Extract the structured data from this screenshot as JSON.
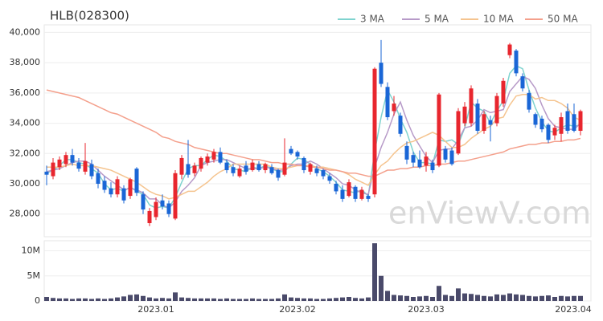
{
  "watermark": "enViewV.com",
  "chart_data": [
    {
      "type": "candlestick",
      "title": "HLB(028300)",
      "open": [
        30800,
        30500,
        31100,
        31300,
        31900,
        31400,
        30800,
        31300,
        30700,
        30200,
        29700,
        29300,
        29700,
        29200,
        31000,
        29300,
        27400,
        27800,
        28900,
        28700,
        27700,
        30600,
        31300,
        30700,
        31000,
        31400,
        31600,
        32100,
        31400,
        31100,
        30500,
        31200,
        30900,
        31300,
        30900,
        31100,
        30900,
        30600,
        32300,
        32100,
        31700,
        30800,
        31000,
        30900,
        30500,
        30000,
        29600,
        29200,
        29800,
        29000,
        29200,
        29300,
        38000,
        36400,
        34800,
        34500,
        32500,
        31900,
        31600,
        31200,
        31400,
        31200,
        32300,
        32200,
        32000,
        34000,
        34000,
        35300,
        33500,
        34200,
        34000,
        35300,
        38500,
        38800,
        37100,
        36000,
        34600,
        34300,
        33900,
        33200,
        33300,
        34800,
        34600,
        33500
      ],
      "high": [
        31200,
        31700,
        31800,
        32100,
        32300,
        31700,
        32700,
        31600,
        31000,
        30500,
        30100,
        30500,
        29900,
        30400,
        31100,
        29500,
        28400,
        29100,
        29300,
        28900,
        30900,
        31900,
        32900,
        31400,
        31800,
        32000,
        32300,
        32400,
        31600,
        31300,
        31200,
        31500,
        31600,
        31500,
        31400,
        31300,
        31000,
        33000,
        32500,
        32200,
        31800,
        31400,
        31200,
        31000,
        30700,
        30200,
        29900,
        30300,
        29900,
        29800,
        29300,
        37700,
        39500,
        36700,
        35800,
        34700,
        32800,
        32100,
        32200,
        32100,
        31600,
        36000,
        32500,
        32400,
        35000,
        35400,
        36500,
        35600,
        34800,
        34500,
        36000,
        37000,
        39300,
        38900,
        37300,
        36200,
        34700,
        34500,
        34000,
        33900,
        34700,
        35300,
        35300,
        34900
      ],
      "low": [
        29900,
        30300,
        30900,
        31100,
        31200,
        30800,
        30600,
        30300,
        29700,
        29400,
        29100,
        29100,
        28700,
        29000,
        29200,
        28000,
        27200,
        27600,
        28300,
        27800,
        27600,
        30300,
        30400,
        30500,
        30800,
        31200,
        31400,
        31300,
        30700,
        30500,
        30400,
        30600,
        30800,
        30800,
        30700,
        30600,
        30200,
        30500,
        31900,
        31600,
        30700,
        30600,
        30500,
        30300,
        30000,
        29300,
        28800,
        29100,
        28800,
        28900,
        28800,
        29100,
        36400,
        34200,
        34500,
        33100,
        31300,
        31100,
        31000,
        30800,
        30700,
        31100,
        31400,
        31200,
        31900,
        33800,
        33800,
        33300,
        33300,
        32800,
        33800,
        35100,
        38300,
        37100,
        36100,
        34700,
        33700,
        33400,
        32700,
        32900,
        32800,
        33300,
        33400,
        33200
      ],
      "close": [
        30600,
        31400,
        31600,
        31900,
        31400,
        31000,
        31500,
        30500,
        30000,
        29600,
        29300,
        30300,
        28900,
        30300,
        29400,
        28300,
        28200,
        28800,
        28500,
        28000,
        30700,
        31700,
        30600,
        31200,
        31700,
        31800,
        32100,
        31400,
        30900,
        30700,
        31000,
        30800,
        31400,
        30900,
        31300,
        30700,
        30400,
        31400,
        32000,
        31800,
        30900,
        31300,
        30700,
        30500,
        30200,
        29500,
        29000,
        30100,
        29000,
        29600,
        29000,
        37600,
        36600,
        34400,
        35300,
        33300,
        31600,
        31400,
        31100,
        31800,
        30900,
        35900,
        31600,
        31300,
        34800,
        35100,
        36300,
        33500,
        34600,
        33900,
        35800,
        36800,
        39200,
        37300,
        36300,
        34900,
        33900,
        33600,
        32900,
        33700,
        34400,
        33500,
        33500,
        34800
      ],
      "up_color": "#e8262e",
      "down_color": "#1a66d6",
      "series": [
        {
          "name": "3 MA",
          "color": "#7fd3cf",
          "values": [
            30700,
            30900,
            31200,
            31600,
            31600,
            31400,
            31300,
            31000,
            30700,
            30000,
            29600,
            29700,
            29500,
            29800,
            29500,
            29300,
            28600,
            28400,
            28500,
            28400,
            29100,
            30100,
            31000,
            31200,
            31200,
            31600,
            31900,
            31800,
            31500,
            31000,
            30900,
            30800,
            31100,
            31000,
            31200,
            31000,
            30800,
            30800,
            31300,
            31700,
            31600,
            31300,
            31000,
            30800,
            30500,
            30100,
            29600,
            29500,
            29400,
            29600,
            29200,
            32100,
            34400,
            36200,
            35400,
            34300,
            33400,
            32100,
            31400,
            31400,
            31300,
            32900,
            32800,
            32900,
            32600,
            33700,
            35400,
            35000,
            34800,
            34000,
            34800,
            35500,
            37300,
            37800,
            37600,
            36200,
            35000,
            34100,
            33500,
            33400,
            33700,
            33900,
            33800,
            33900
          ]
        },
        {
          "name": "5 MA",
          "color": "#b79ac8",
          "values": [
            30800,
            30900,
            31000,
            31200,
            31400,
            31500,
            31500,
            31300,
            30900,
            30500,
            30200,
            29900,
            29600,
            29700,
            29600,
            29400,
            29000,
            29000,
            28600,
            28400,
            28800,
            29500,
            29900,
            30400,
            31200,
            31400,
            31500,
            31600,
            31600,
            31400,
            31200,
            31000,
            31000,
            31000,
            31100,
            31000,
            30900,
            30900,
            31200,
            31300,
            31300,
            31500,
            31300,
            31000,
            30700,
            30400,
            30000,
            29900,
            29600,
            29400,
            29300,
            31100,
            32400,
            33400,
            34600,
            35400,
            34200,
            33200,
            32500,
            31800,
            31400,
            32200,
            32300,
            32300,
            32900,
            33700,
            33800,
            34200,
            34900,
            34700,
            34800,
            34900,
            36100,
            36600,
            37100,
            36900,
            36300,
            35200,
            34300,
            33800,
            33700,
            33600,
            33600,
            34000
          ]
        },
        {
          "name": "10 MA",
          "color": "#f5c48f",
          "values": [
            31100,
            31100,
            31100,
            31200,
            31300,
            31200,
            31200,
            31200,
            31100,
            31000,
            30900,
            30700,
            30500,
            30300,
            30100,
            29800,
            29500,
            29300,
            29200,
            29000,
            29100,
            29300,
            29500,
            29500,
            29800,
            30100,
            30500,
            30800,
            31000,
            31300,
            31300,
            31300,
            31300,
            31300,
            31300,
            31100,
            31000,
            31000,
            31100,
            31200,
            31200,
            31200,
            31100,
            31100,
            31000,
            30900,
            30800,
            30600,
            30300,
            30100,
            29900,
            30600,
            31200,
            31500,
            32000,
            32400,
            32700,
            32800,
            33000,
            33200,
            33400,
            33200,
            32800,
            32400,
            32400,
            32600,
            33000,
            33300,
            33600,
            33800,
            34300,
            34400,
            35200,
            35800,
            35900,
            35900,
            35600,
            35700,
            35500,
            35500,
            35300,
            35000,
            34400,
            34200
          ]
        },
        {
          "name": "50 MA",
          "color": "#f4a08c",
          "values": [
            36200,
            36100,
            36000,
            35900,
            35800,
            35700,
            35500,
            35300,
            35100,
            34900,
            34700,
            34600,
            34400,
            34200,
            34000,
            33800,
            33600,
            33400,
            33100,
            33000,
            32800,
            32700,
            32600,
            32400,
            32300,
            32200,
            32100,
            32000,
            32000,
            31900,
            31800,
            31700,
            31600,
            31600,
            31500,
            31400,
            31400,
            31300,
            31300,
            31200,
            31200,
            31100,
            31100,
            31000,
            30900,
            30900,
            30800,
            30700,
            30700,
            30600,
            30500,
            30500,
            30700,
            30900,
            30900,
            31000,
            31000,
            31100,
            31100,
            31200,
            31200,
            31300,
            31300,
            31400,
            31500,
            31500,
            31600,
            31700,
            31800,
            31900,
            32000,
            32100,
            32300,
            32400,
            32500,
            32600,
            32600,
            32700,
            32700,
            32800,
            32800,
            32900,
            32900,
            33000
          ]
        }
      ],
      "ylim": [
        26500,
        40500
      ],
      "yticks": [
        {
          "value": 28000,
          "label": "28,000"
        },
        {
          "value": 30000,
          "label": "30,000"
        },
        {
          "value": 32000,
          "label": "32,000"
        },
        {
          "value": 34000,
          "label": "34,000"
        },
        {
          "value": 36000,
          "label": "36,000"
        },
        {
          "value": 38000,
          "label": "38,000"
        },
        {
          "value": 40000,
          "label": "40,000"
        }
      ],
      "grid": true
    },
    {
      "type": "bar",
      "categories": [
        null,
        null,
        null,
        null,
        null,
        null,
        null,
        null,
        null,
        null,
        null,
        null,
        null,
        null,
        null,
        null,
        null,
        "2023.01",
        null,
        null,
        null,
        null,
        null,
        null,
        null,
        null,
        null,
        null,
        null,
        null,
        null,
        null,
        null,
        null,
        null,
        null,
        null,
        null,
        null,
        "2023.02",
        null,
        null,
        null,
        null,
        null,
        null,
        null,
        null,
        null,
        null,
        null,
        null,
        null,
        null,
        null,
        null,
        null,
        null,
        null,
        "2023.03",
        null,
        null,
        null,
        null,
        null,
        null,
        null,
        null,
        null,
        null,
        null,
        null,
        null,
        null,
        null,
        null,
        null,
        null,
        null,
        null,
        null,
        null,
        "2023.04",
        null
      ],
      "values": [
        800000,
        600000,
        500000,
        500000,
        400000,
        500000,
        500000,
        400000,
        500000,
        400000,
        500000,
        700000,
        900000,
        1200000,
        1300000,
        1000000,
        700000,
        500000,
        600000,
        500000,
        1700000,
        700000,
        600000,
        500000,
        500000,
        500000,
        500000,
        400000,
        500000,
        400000,
        400000,
        400000,
        500000,
        400000,
        400000,
        400000,
        500000,
        1300000,
        700000,
        600000,
        500000,
        500000,
        400000,
        400000,
        500000,
        600000,
        700000,
        800000,
        600000,
        500000,
        700000,
        11500000,
        5000000,
        2000000,
        1200000,
        1100000,
        1000000,
        800000,
        900000,
        1000000,
        800000,
        3000000,
        1200000,
        1000000,
        2500000,
        1500000,
        1400000,
        1200000,
        1000000,
        900000,
        1300000,
        1200000,
        1500000,
        1300000,
        1200000,
        1000000,
        900000,
        1000000,
        1100000,
        800000,
        1000000,
        900000,
        1000000,
        1000000
      ],
      "color": "#4a4a6a",
      "ylim": [
        0,
        12000000
      ],
      "yticks": [
        0,
        {
          "value": 5000000,
          "label": "5M"
        },
        {
          "value": 10000000,
          "label": "10M"
        }
      ],
      "grid": true
    }
  ]
}
